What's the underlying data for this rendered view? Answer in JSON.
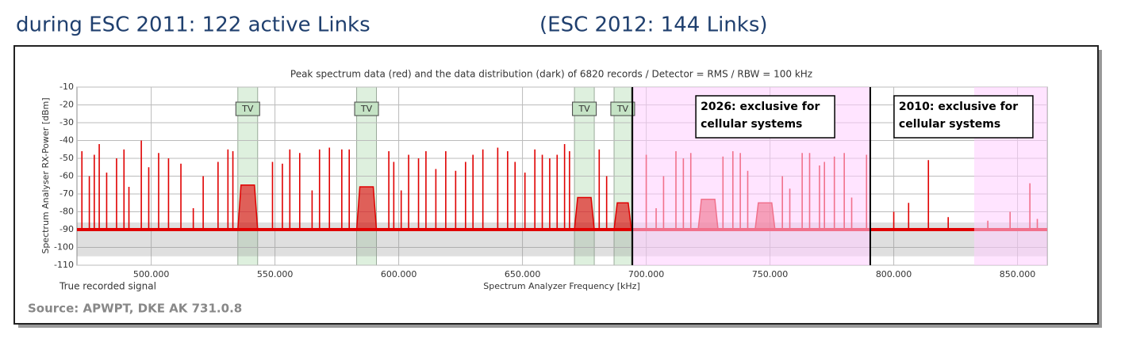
{
  "header": {
    "left": "during ESC 2011: 122 active Links",
    "right": "(ESC 2012: 144 Links)"
  },
  "chart_data": {
    "type": "line",
    "title": "Peak spectrum data (red) and the data distribution (dark) of 6820 records / Detector = RMS / RBW = 100 kHz",
    "ylabel": "Spectrum Analyser RX-Power [dBm]",
    "xlabel": "Spectrum Analyzer Frequency [kHz]",
    "note": "True recorded signal",
    "source": "Source: APWPT, DKE AK 731.0.8",
    "color": "#e00000",
    "ylim": [
      -110,
      -10
    ],
    "yticks": [
      -10,
      -20,
      -30,
      -40,
      -50,
      -60,
      -70,
      -80,
      -90,
      -100,
      -110
    ],
    "xlim": [
      470,
      862
    ],
    "xticks": [
      {
        "value": 500,
        "label": "500.000"
      },
      {
        "value": 550,
        "label": "550.000"
      },
      {
        "value": 600,
        "label": "600.000"
      },
      {
        "value": 650,
        "label": "650.000"
      },
      {
        "value": 700,
        "label": "700.000"
      },
      {
        "value": 750,
        "label": "750.000"
      },
      {
        "value": 800,
        "label": "800.000"
      },
      {
        "value": 850,
        "label": "850.000"
      }
    ],
    "grid": true,
    "baseline": -90,
    "distribution": [
      -105,
      -86
    ],
    "spikes": {
      "x": [
        472,
        475,
        477,
        479,
        482,
        486,
        489,
        491,
        496,
        499,
        503,
        507,
        512,
        517,
        521,
        527,
        531,
        533,
        549,
        553,
        556,
        560,
        565,
        568,
        572,
        577,
        580,
        596,
        598,
        601,
        604,
        608,
        611,
        615,
        619,
        623,
        627,
        630,
        634,
        640,
        644,
        647,
        651,
        655,
        658,
        661,
        664,
        667,
        669,
        681,
        684,
        700,
        704,
        707,
        712,
        715,
        718,
        731,
        735,
        738,
        741,
        755,
        758,
        763,
        766,
        770,
        772,
        776,
        780,
        783,
        789,
        800,
        806,
        814,
        822,
        838,
        847,
        855,
        858
      ],
      "values": [
        -46,
        -60,
        -48,
        -42,
        -58,
        -50,
        -45,
        -66,
        -40,
        -55,
        -47,
        -50,
        -53,
        -78,
        -60,
        -52,
        -45,
        -46,
        -52,
        -53,
        -45,
        -47,
        -68,
        -45,
        -44,
        -45,
        -45,
        -46,
        -52,
        -68,
        -48,
        -50,
        -46,
        -56,
        -46,
        -57,
        -52,
        -48,
        -45,
        -44,
        -46,
        -52,
        -58,
        -45,
        -48,
        -50,
        -48,
        -42,
        -46,
        -45,
        -60,
        -48,
        -78,
        -60,
        -46,
        -50,
        -47,
        -49,
        -46,
        -47,
        -57,
        -60,
        -67,
        -47,
        -47,
        -54,
        -52,
        -49,
        -47,
        -72,
        -48,
        -80,
        -75,
        -51,
        -83,
        -85,
        -80,
        -64,
        -84
      ]
    },
    "humps": [
      {
        "x": [
          535,
          543
        ],
        "value": -65
      },
      {
        "x": [
          583,
          591
        ],
        "value": -66
      },
      {
        "x": [
          671,
          679
        ],
        "value": -72
      },
      {
        "x": [
          687,
          694
        ],
        "value": -75
      },
      {
        "x": [
          721,
          729
        ],
        "value": -73
      },
      {
        "x": [
          744,
          752
        ],
        "value": -75
      }
    ],
    "tv_bands": [
      {
        "x": [
          535,
          543
        ],
        "label": "TV"
      },
      {
        "x": [
          583,
          591
        ],
        "label": "TV"
      },
      {
        "x": [
          671,
          679
        ],
        "label": "TV"
      },
      {
        "x": [
          687,
          694
        ],
        "label": "TV"
      }
    ],
    "shaded": [
      [
        694.4,
        790.5
      ],
      [
        832.5,
        862
      ]
    ],
    "regions": [
      {
        "x": 694.4,
        "label": [
          "2026: exclusive for",
          "cellular systems"
        ]
      },
      {
        "x": 790.5,
        "label": [
          "2010: exclusive for",
          "cellular systems"
        ]
      }
    ]
  }
}
